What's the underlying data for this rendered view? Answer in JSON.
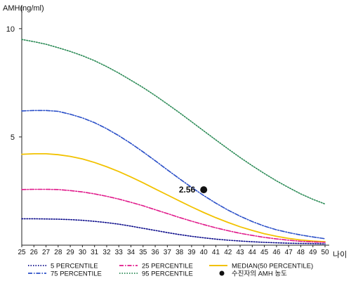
{
  "chart_data": {
    "type": "line",
    "ylabel": "AMH(ng/ml)",
    "xlabel": "나이",
    "x": [
      25,
      26,
      27,
      28,
      29,
      30,
      31,
      32,
      33,
      34,
      35,
      36,
      37,
      38,
      39,
      40,
      41,
      42,
      43,
      44,
      45,
      46,
      47,
      48,
      49,
      50
    ],
    "xlim": [
      25,
      50
    ],
    "ylim": [
      0,
      11
    ],
    "yticks": [
      5,
      10
    ],
    "grid": false,
    "legend_position": "bottom",
    "series": [
      {
        "name": "5 PERCENTILE",
        "color": "#0a0a8a",
        "dash": "dot",
        "values": [
          1.22,
          1.22,
          1.21,
          1.2,
          1.18,
          1.15,
          1.1,
          1.04,
          0.97,
          0.88,
          0.78,
          0.68,
          0.58,
          0.49,
          0.41,
          0.34,
          0.28,
          0.23,
          0.19,
          0.16,
          0.13,
          0.11,
          0.09,
          0.08,
          0.07,
          0.06
        ]
      },
      {
        "name": "25 PERCENTILE",
        "color": "#e0188a",
        "dash": "dashdot",
        "values": [
          2.57,
          2.58,
          2.58,
          2.57,
          2.52,
          2.46,
          2.37,
          2.26,
          2.13,
          1.98,
          1.82,
          1.64,
          1.46,
          1.28,
          1.11,
          0.95,
          0.8,
          0.67,
          0.55,
          0.45,
          0.36,
          0.29,
          0.23,
          0.18,
          0.15,
          0.13
        ]
      },
      {
        "name": "MEDIAN(50 PERCENTILE)",
        "color": "#f2c200",
        "dash": "solid",
        "values": [
          4.2,
          4.22,
          4.22,
          4.18,
          4.1,
          3.98,
          3.82,
          3.62,
          3.4,
          3.15,
          2.88,
          2.6,
          2.32,
          2.04,
          1.77,
          1.51,
          1.27,
          1.05,
          0.85,
          0.68,
          0.53,
          0.41,
          0.31,
          0.24,
          0.19,
          0.16
        ]
      },
      {
        "name": "75 PERCENTILE",
        "color": "#2a4fc8",
        "dash": "dashdot",
        "values": [
          6.2,
          6.22,
          6.22,
          6.18,
          6.05,
          5.88,
          5.66,
          5.38,
          5.06,
          4.7,
          4.31,
          3.9,
          3.48,
          3.07,
          2.67,
          2.29,
          1.94,
          1.62,
          1.34,
          1.09,
          0.88,
          0.71,
          0.58,
          0.47,
          0.38,
          0.3
        ]
      },
      {
        "name": "95 PERCENTILE",
        "color": "#2a8a55",
        "dash": "dot",
        "values": [
          9.5,
          9.4,
          9.28,
          9.12,
          8.95,
          8.75,
          8.52,
          8.25,
          7.95,
          7.62,
          7.28,
          6.91,
          6.52,
          6.12,
          5.7,
          5.28,
          4.86,
          4.45,
          4.05,
          3.67,
          3.31,
          2.97,
          2.66,
          2.37,
          2.12,
          1.9
        ]
      }
    ],
    "highlight": {
      "label": "수진자의 AMH 농도",
      "x": 40,
      "y": 2.56,
      "value_label": "2.56"
    }
  }
}
